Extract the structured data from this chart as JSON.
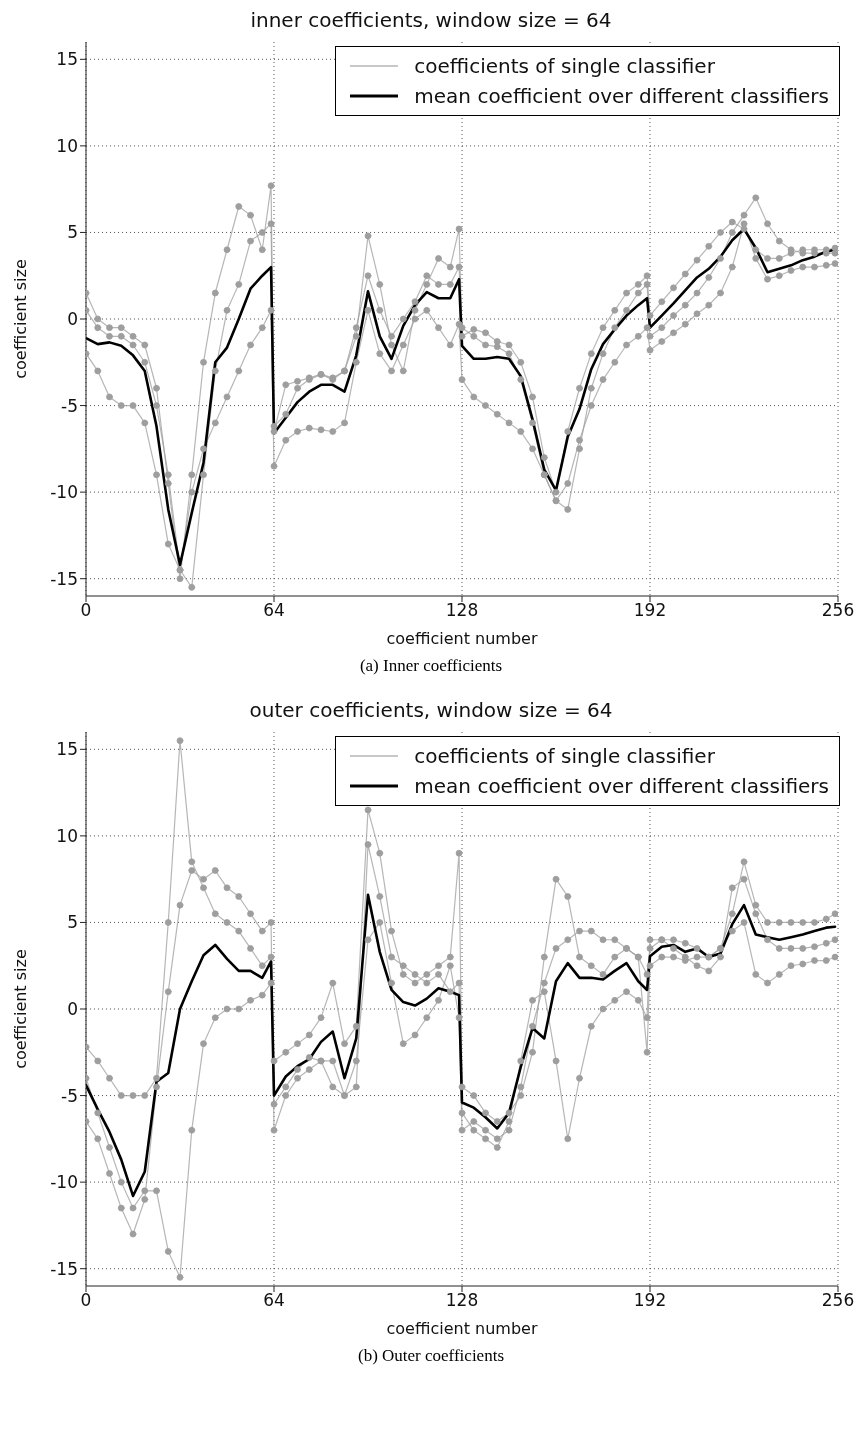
{
  "chart_data": [
    {
      "type": "line",
      "title": "inner coefficients, window size = 64",
      "xlabel": "coefficient number",
      "ylabel": "coefficient size",
      "annotations": [
        "(a) Inner coefficients"
      ],
      "x": [
        0,
        4,
        8,
        12,
        16,
        20,
        24,
        28,
        32,
        36,
        40,
        44,
        48,
        52,
        56,
        60,
        63,
        64,
        68,
        72,
        76,
        80,
        84,
        88,
        92,
        96,
        100,
        104,
        108,
        112,
        116,
        120,
        124,
        127,
        128,
        132,
        136,
        140,
        144,
        148,
        152,
        156,
        160,
        164,
        168,
        172,
        176,
        180,
        184,
        188,
        191,
        192,
        196,
        200,
        204,
        208,
        212,
        216,
        220,
        224,
        228,
        232,
        236,
        240,
        244,
        248,
        252,
        255
      ],
      "xlim": [
        0,
        256
      ],
      "xticks": [
        0,
        64,
        128,
        192,
        256
      ],
      "ylim": [
        -16,
        16
      ],
      "yticks": [
        -15,
        -10,
        -5,
        0,
        5,
        10,
        15
      ],
      "grid": true,
      "legend": "top right",
      "series": [
        {
          "name": "coefficients of single classifier",
          "color": "#9e9e9e",
          "marker": "circle",
          "values": [
            1.5,
            0,
            -0.5,
            -0.5,
            -1.0,
            -1.5,
            -4.0,
            -9.5,
            -15.0,
            -9.0,
            -2.5,
            1.5,
            4.0,
            6.5,
            6.0,
            4.0,
            7.7,
            -6.2,
            -5.5,
            -4.0,
            -3.5,
            -3.2,
            -3.5,
            -3.0,
            -1.0,
            4.8,
            2.0,
            -1.5,
            -3.0,
            0.5,
            2.0,
            3.5,
            3.0,
            5.2,
            -1.0,
            -0.6,
            -0.8,
            -1.3,
            -1.5,
            -2.5,
            -4.5,
            -8.0,
            -10.0,
            -6.5,
            -4.0,
            -2.0,
            -0.5,
            0.5,
            1.5,
            2.0,
            2.5,
            0.2,
            1.0,
            1.8,
            2.6,
            3.4,
            4.2,
            5.0,
            5.6,
            5.2,
            4.0,
            3.5,
            3.5,
            3.8,
            4.0,
            4.0,
            4.0,
            4.1
          ]
        },
        {
          "color": "#9e9e9e",
          "marker": "circle",
          "values": [
            0.5,
            -0.5,
            -1.0,
            -1.0,
            -1.5,
            -2.5,
            -5.0,
            -9.0,
            -14.5,
            -15.5,
            -9.0,
            -3.0,
            0.5,
            2.0,
            4.5,
            5.0,
            5.5,
            -6.5,
            -3.8,
            -3.6,
            -3.4,
            -3.2,
            -3.4,
            -3.0,
            -0.5,
            2.5,
            0.5,
            -1.0,
            0.0,
            1.0,
            2.5,
            2.0,
            2.0,
            3.0,
            -0.5,
            -1.0,
            -1.5,
            -1.6,
            -2.0,
            -3.5,
            -6.0,
            -9.0,
            -10.5,
            -11.0,
            -7.5,
            -4.0,
            -2.0,
            -0.5,
            0.5,
            1.5,
            2.0,
            -1.0,
            -0.5,
            0.2,
            0.8,
            1.5,
            2.4,
            3.5,
            5.0,
            6.0,
            7.0,
            5.5,
            4.5,
            4.0,
            3.8,
            3.8,
            3.8,
            3.8
          ]
        },
        {
          "color": "#9e9e9e",
          "marker": "circle",
          "values": [
            -2.0,
            -3.0,
            -4.5,
            -5.0,
            -5.0,
            -6.0,
            -9.0,
            -13.0,
            -14.5,
            -10.0,
            -7.5,
            -6.0,
            -4.5,
            -3.0,
            -1.5,
            -0.5,
            0.5,
            -8.5,
            -7.0,
            -6.5,
            -6.3,
            -6.4,
            -6.5,
            -6.0,
            -2.5,
            0.5,
            -2.0,
            -3.0,
            -1.5,
            0.0,
            0.5,
            -0.5,
            -1.5,
            -0.3,
            -3.5,
            -4.5,
            -5.0,
            -5.5,
            -6.0,
            -6.5,
            -7.5,
            -9.0,
            -10.5,
            -9.5,
            -7.0,
            -5.0,
            -3.5,
            -2.5,
            -1.5,
            -1.0,
            -0.5,
            -1.8,
            -1.3,
            -0.8,
            -0.3,
            0.3,
            0.8,
            1.5,
            3.0,
            5.5,
            3.5,
            2.3,
            2.5,
            2.8,
            3.0,
            3.0,
            3.1,
            3.2
          ]
        },
        {
          "name": "mean coefficient over different classifiers",
          "color": "#000000",
          "marker": "none",
          "values": [
            -1.1,
            -1.45,
            -1.35,
            -1.55,
            -2.1,
            -3.0,
            -6.2,
            -11.0,
            -14.2,
            -11.2,
            -8.3,
            -2.5,
            -1.65,
            0,
            1.75,
            2.5,
            3.0,
            -6.6,
            -5.7,
            -4.8,
            -4.2,
            -3.8,
            -3.8,
            -4.2,
            -2.1,
            1.6,
            -1.0,
            -2.3,
            -0.4,
            0.8,
            1.55,
            1.2,
            1.2,
            2.3,
            -1.55,
            -2.3,
            -2.3,
            -2.2,
            -2.3,
            -3.3,
            -5.8,
            -8.7,
            -9.9,
            -6.8,
            -5.2,
            -2.9,
            -1.45,
            -0.6,
            0.2,
            0.8,
            1.2,
            -0.5,
            0.2,
            0.9,
            1.65,
            2.4,
            2.9,
            3.6,
            4.55,
            5.2,
            4.1,
            2.7,
            2.9,
            3.1,
            3.4,
            3.6,
            3.9,
            4.0
          ]
        }
      ]
    },
    {
      "type": "line",
      "title": "outer coefficients, window size = 64",
      "xlabel": "coefficient number",
      "ylabel": "coefficient size",
      "annotations": [
        "(b) Outer coefficients"
      ],
      "x": [
        0,
        4,
        8,
        12,
        16,
        20,
        24,
        28,
        32,
        36,
        40,
        44,
        48,
        52,
        56,
        60,
        63,
        64,
        68,
        72,
        76,
        80,
        84,
        88,
        92,
        96,
        100,
        104,
        108,
        112,
        116,
        120,
        124,
        127,
        128,
        132,
        136,
        140,
        144,
        148,
        152,
        156,
        160,
        164,
        168,
        172,
        176,
        180,
        184,
        188,
        191,
        192,
        196,
        200,
        204,
        208,
        212,
        216,
        220,
        224,
        228,
        232,
        236,
        240,
        244,
        248,
        252,
        255
      ],
      "xlim": [
        0,
        256
      ],
      "xticks": [
        0,
        64,
        128,
        192,
        256
      ],
      "ylim": [
        -16,
        16
      ],
      "yticks": [
        -15,
        -10,
        -5,
        0,
        5,
        10,
        15
      ],
      "grid": true,
      "legend": "top right",
      "series": [
        {
          "name": "coefficients of single classifier",
          "color": "#9e9e9e",
          "marker": "circle",
          "values": [
            -2.2,
            -3.0,
            -4.0,
            -5.0,
            -5.0,
            -5.0,
            -4.0,
            5.0,
            15.5,
            8.5,
            7.0,
            5.5,
            5.0,
            4.5,
            3.5,
            2.5,
            3.0,
            -3.0,
            -2.5,
            -2.0,
            -1.5,
            -0.5,
            1.5,
            -2.0,
            -1.0,
            11.5,
            9.0,
            4.5,
            2.0,
            1.5,
            2.0,
            2.5,
            3.0,
            9.0,
            -4.5,
            -5.0,
            -6.0,
            -6.5,
            -6.0,
            -5.0,
            -2.5,
            3.0,
            7.5,
            6.5,
            3.0,
            2.5,
            2.0,
            3.0,
            3.5,
            3.0,
            2.0,
            3.5,
            4.0,
            4.0,
            3.8,
            3.5,
            3.0,
            3.5,
            5.5,
            8.5,
            6.0,
            5.0,
            5.0,
            5.0,
            5.0,
            5.0,
            5.2,
            5.5
          ]
        },
        {
          "color": "#9e9e9e",
          "marker": "circle",
          "values": [
            -6.5,
            -7.5,
            -9.5,
            -11.5,
            -13.0,
            -11.0,
            -4.5,
            1.0,
            6.0,
            8.0,
            7.5,
            8.0,
            7.0,
            6.5,
            5.5,
            4.5,
            5.0,
            -7.0,
            -5.0,
            -4.0,
            -3.5,
            -3.0,
            -3.0,
            -5.0,
            -4.5,
            9.5,
            6.5,
            3.0,
            2.5,
            2.0,
            1.5,
            2.0,
            1.0,
            1.5,
            -6.0,
            -7.0,
            -7.5,
            -8.0,
            -6.5,
            -3.0,
            0.5,
            1.0,
            -3.0,
            -7.5,
            -4.0,
            -1.0,
            0.0,
            0.5,
            1.0,
            0.5,
            -0.5,
            4.0,
            4.0,
            3.5,
            3.0,
            2.5,
            2.2,
            3.0,
            7.0,
            7.5,
            5.5,
            4.0,
            3.5,
            3.5,
            3.5,
            3.6,
            3.8,
            4.0
          ]
        },
        {
          "color": "#9e9e9e",
          "marker": "circle",
          "values": [
            -4.0,
            -6.0,
            -8.0,
            -10.0,
            -11.5,
            -10.5,
            -10.5,
            -14.0,
            -15.5,
            -7.0,
            -2.0,
            -0.5,
            0.0,
            0.0,
            0.5,
            0.8,
            1.5,
            -5.5,
            -4.5,
            -3.5,
            -2.8,
            -3.0,
            -4.5,
            -5.0,
            -3.0,
            4.0,
            5.0,
            1.5,
            -2.0,
            -1.5,
            -0.5,
            0.5,
            2.5,
            -0.5,
            -7.0,
            -6.5,
            -7.0,
            -7.5,
            -7.0,
            -4.5,
            -1.0,
            1.5,
            3.5,
            4.0,
            4.5,
            4.5,
            4.0,
            4.0,
            3.5,
            3.0,
            -2.5,
            2.5,
            3.0,
            3.0,
            2.8,
            3.0,
            3.0,
            3.5,
            4.5,
            5.0,
            2.0,
            1.5,
            2.0,
            2.5,
            2.6,
            2.8,
            2.8,
            3.0
          ]
        },
        {
          "name": "mean coefficient over different classifiers",
          "color": "#000000",
          "marker": "none",
          "values": [
            -4.4,
            -5.8,
            -7.1,
            -8.7,
            -10.8,
            -9.4,
            -4.2,
            -3.7,
            0,
            1.6,
            3.1,
            3.7,
            2.9,
            2.2,
            2.2,
            1.8,
            2.75,
            -5.0,
            -3.9,
            -3.3,
            -2.9,
            -1.9,
            -1.3,
            -4.0,
            -1.7,
            6.6,
            3.3,
            1.1,
            0.4,
            0.2,
            0.6,
            1.2,
            1.0,
            0.8,
            -5.4,
            -5.7,
            -6.25,
            -6.9,
            -6.0,
            -3.35,
            -1.1,
            -1.7,
            1.6,
            2.65,
            1.8,
            1.8,
            1.7,
            2.2,
            2.65,
            1.6,
            1.1,
            3.05,
            3.6,
            3.7,
            3.3,
            3.5,
            3.0,
            3.2,
            4.9,
            6.0,
            4.3,
            4.15,
            4.0,
            4.15,
            4.3,
            4.5,
            4.7,
            4.75
          ]
        }
      ]
    }
  ]
}
